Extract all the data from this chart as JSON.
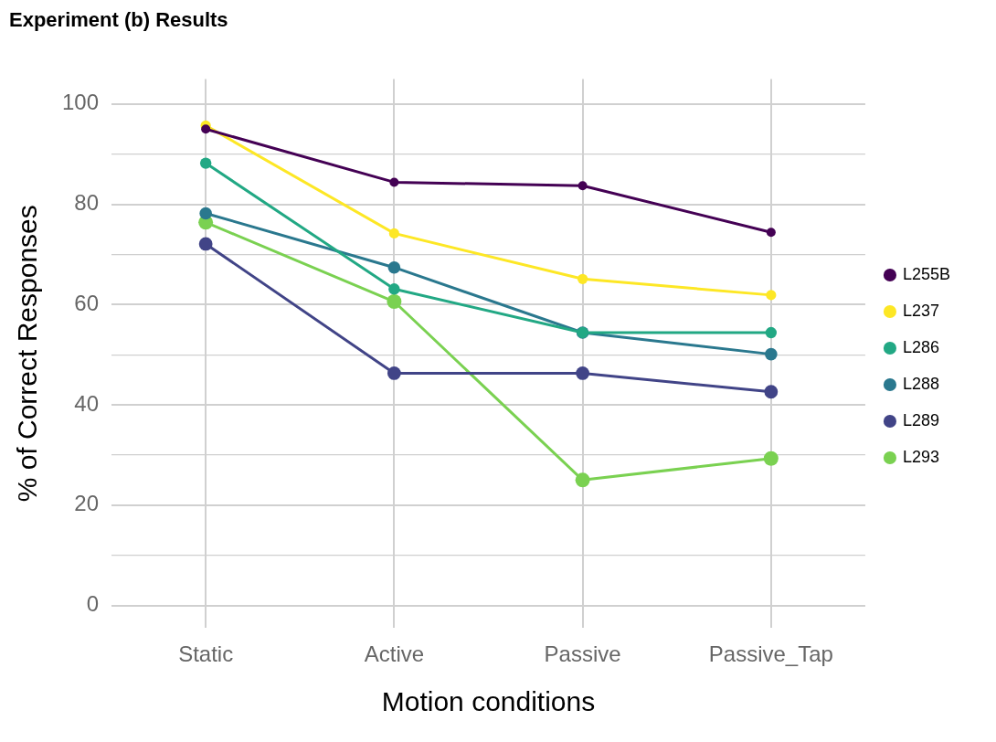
{
  "chart_data": {
    "type": "line",
    "title": "Experiment (b) Results",
    "xlabel": "Motion conditions",
    "ylabel": "% of Correct Responses",
    "categories": [
      "Static",
      "Active",
      "Passive",
      "Passive_Tap"
    ],
    "series": [
      {
        "name": "L255B",
        "color": "#440154",
        "values": [
          95.0,
          84.4,
          83.7,
          74.4
        ]
      },
      {
        "name": "L237",
        "color": "#fde725",
        "values": [
          95.7,
          74.2,
          65.1,
          61.9
        ]
      },
      {
        "name": "L286",
        "color": "#22a884",
        "values": [
          88.2,
          63.1,
          54.4,
          54.4
        ]
      },
      {
        "name": "L288",
        "color": "#2a788e",
        "values": [
          78.2,
          67.4,
          54.4,
          50.1
        ]
      },
      {
        "name": "L289",
        "color": "#414487",
        "values": [
          72.1,
          46.3,
          46.3,
          42.6
        ]
      },
      {
        "name": "L293",
        "color": "#7ad151",
        "values": [
          76.4,
          60.6,
          25.0,
          29.3
        ]
      }
    ],
    "ylim": [
      -4.5,
      105
    ],
    "yticks": [
      0,
      {
        "value": 10,
        "label": null
      },
      20,
      {
        "value": 30,
        "label": null
      },
      40,
      {
        "value": 50,
        "label": null
      },
      60,
      {
        "value": 70,
        "label": null
      },
      80,
      {
        "value": 90,
        "label": null
      },
      100
    ],
    "grid": true,
    "legend": "right",
    "marker": "circle",
    "line_style": "solid"
  }
}
